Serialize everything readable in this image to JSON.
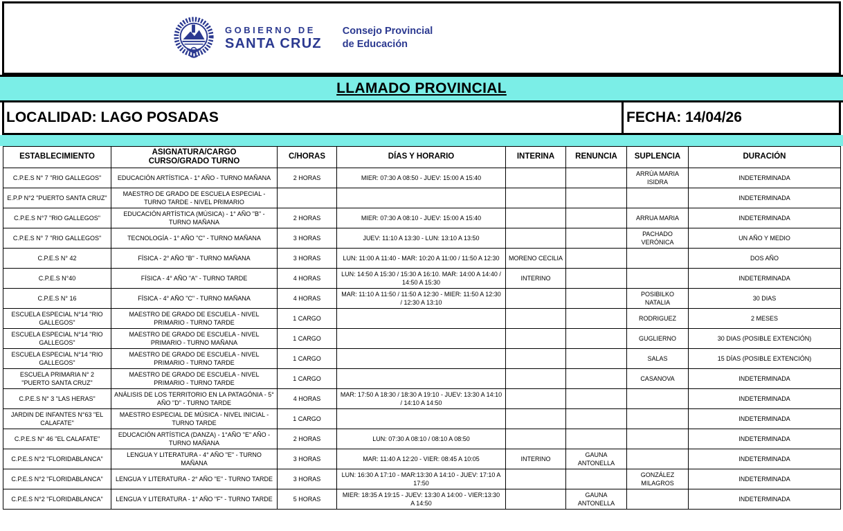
{
  "colors": {
    "band_cyan": "#7beee7",
    "logo_navy": "#2b3990",
    "border_black": "#000000"
  },
  "header": {
    "seal_icon": "santa-cruz-coat-of-arms",
    "gov_line1": "GOBIERNO DE",
    "gov_line2": "SANTA CRUZ",
    "council_line1": "Consejo Provincial",
    "council_line2": "de Educación"
  },
  "title": "LLAMADO PROVINCIAL",
  "localidad": "LOCALIDAD: LAGO POSADAS",
  "fecha": "FECHA: 14/04/26",
  "table": {
    "columns": [
      "ESTABLECIMIENTO",
      "ASIGNATURA/CARGO\nCURSO/GRADO  TURNO",
      "C/HORAS",
      "DÍAS Y HORARIO",
      "INTERINA",
      "RENUNCIA",
      "SUPLENCIA",
      "DURACIÓN"
    ],
    "column_keys": [
      "establecimiento",
      "asignatura-cargo",
      "c-horas",
      "dias-horario",
      "interina",
      "renuncia",
      "suplencia",
      "duracion"
    ],
    "rows": [
      [
        "C.P.E.S N° 7 \"RIO GALLEGOS\"",
        "EDUCACIÓN ARTÍSTICA - 1° AÑO - TURNO MAÑANA",
        "2 HORAS",
        "MIER: 07:30 A 08:50 -  JUEV: 15:00 A 15:40",
        "",
        "",
        "ARRÚA MARIA ISIDRA",
        "INDETERMINADA"
      ],
      [
        "E.P.P N°2 \"PUERTO SANTA CRUZ\"",
        "MAESTRO DE GRADO DE ESCUELA ESPECIAL - TURNO TARDE - NIVEL PRIMARIO",
        "",
        "",
        "",
        "",
        "",
        "INDETERMINADA"
      ],
      [
        "C.P.E.S N°7 \"RIO GALLEGOS\"",
        "EDUCACIÓN ARTÍSTICA (MÚSICA) - 1° AÑO \"B\" - TURNO MAÑANA",
        "2 HORAS",
        "MIER: 07:30 A 08:10 - JUEV: 15:00 A 15:40",
        "",
        "",
        "ARRUA MARIA",
        "INDETERMINADA"
      ],
      [
        "C.P.E.S N° 7 \"RIO GALLEGOS\"",
        "TECNOLOGÍA - 1° AÑO \"C\" - TURNO MAÑANA",
        "3 HORAS",
        "JUEV: 11:10 A 13:30 - LUN: 13:10 A 13:50",
        "",
        "",
        "PACHADO VERÓNICA",
        "UN AÑO Y MEDIO"
      ],
      [
        "C.P.E.S N° 42",
        "FÍSICA - 2° AÑO \"B\" - TURNO MAÑANA",
        "3 HORAS",
        "LUN: 11:00 A 11:40 - MAR: 10:20 A 11:00 / 11:50 A 12:30",
        "MORENO CECILIA",
        "",
        "",
        "DOS  AÑO"
      ],
      [
        "C.P.E.S N°40",
        "FÍSICA - 4° AÑO \"A\" - TURNO TARDE",
        "4 HORAS",
        "LUN: 14:50 A 15:30 / 15:30 A 16:10. MAR: 14:00 A 14:40 / 14:50 A 15:30",
        "INTERINO",
        "",
        "",
        "INDETERMINADA"
      ],
      [
        "C.P.E.S N° 16",
        "FÍSICA - 4° AÑO \"C\" - TURNO MAÑANA",
        "4 HORAS",
        "MAR: 11:10 A 11:50 / 11:50 A 12:30 - MIER: 11:50 A 12:30 / 12:30 A 13:10",
        "",
        "",
        "POSIBILKO NATALIA",
        "30 DIAS"
      ],
      [
        "ESCUELA ESPECIAL N°14 \"RIO GALLEGOS\"",
        "MAESTRO DE GRADO DE ESCUELA  - NIVEL PRIMARIO - TURNO TARDE",
        "1 CARGO",
        "",
        "",
        "",
        "RODRIGUEZ",
        "2 MESES"
      ],
      [
        "ESCUELA ESPECIAL N°14 \"RIO GALLEGOS\"",
        "MAESTRO DE GRADO DE ESCUELA  - NIVEL PRIMARIO - TURNO MAÑANA",
        "1 CARGO",
        "",
        "",
        "",
        "GUGLIERNO",
        "30 DIAS (POSIBLE EXTENCIÓN)"
      ],
      [
        "ESCUELA ESPECIAL N°14 \"RIO GALLEGOS\"",
        "MAESTRO DE GRADO DE ESCUELA  - NIVEL PRIMARIO - TURNO TARDE",
        "1 CARGO",
        "",
        "",
        "",
        "SALAS",
        "15 DÍAS (POSIBLE EXTENCIÓN)"
      ],
      [
        "ESCUELA PRIMARIA N° 2 \"PUERTO SANTA CRUZ\"",
        "MAESTRO DE GRADO DE ESCUELA  - NIVEL PRIMARIO - TURNO TARDE",
        "1 CARGO",
        "",
        "",
        "",
        "CASANOVA",
        "INDETERMINADA"
      ],
      [
        "C.P.E.S N° 3 \"LAS HERAS\"",
        "ANÁLISIS DE LOS TERRITORIO EN LA PATAGÓNIA - 5° AÑO \"D\" - TURNO TARDE",
        "4 HORAS",
        "MAR: 17:50 A 18:30 / 18:30 A 19:10 - JUEV: 13:30 A 14:10 / 14:10 A 14:50",
        "",
        "",
        "",
        "INDETERMINADA"
      ],
      [
        "JARDIN DE INFANTES N°63 \"EL CALAFATE\"",
        "MAESTRO ESPECIAL DE MÚSICA - NIVEL INICIAL - TURNO TARDE",
        "1 CARGO",
        "",
        "",
        "",
        "",
        "INDETERMINADA"
      ],
      [
        "C.P.E.S N° 46 \"EL CALAFATE\"",
        "EDUCACIÓN ARTÍSTICA (DANZA) - 1°AÑO  \"E\" AÑO - TURNO MAÑANA",
        "2 HORAS",
        "LUN: 07:30 A 08:10 / 08:10 A 08:50",
        "",
        "",
        "",
        "INDETERMINADA"
      ],
      [
        "C.P.E.S N°2 \"FLORIDABLANCA\"",
        "LENGUA Y LITERATURA - 4°  AÑO \"E\" - TURNO MAÑANA",
        "3 HORAS",
        "MAR: 11:40 A 12:20 - VIER: 08:45 A 10:05",
        "INTERINO",
        "GAUNA ANTONELLA",
        "",
        "INDETERMINADA"
      ],
      [
        "C.P.E.S N°2 \"FLORIDABLANCA\"",
        "LENGUA Y LITERATURA - 2°  AÑO \"E\" - TURNO TARDE",
        "3 HORAS",
        "LUN: 16:30 A 17:10 - MAR:13:30 A 14:10 - JUEV: 17:10 A 17:50",
        "",
        "",
        "GONZÁLEZ MILAGROS",
        "INDETERMINADA"
      ],
      [
        "C.P.E.S N°2 \"FLORIDABLANCA\"",
        "LENGUA Y LITERATURA - 1° AÑO \"F\" - TURNO TARDE",
        "5 HORAS",
        "MIER: 18:35 A 19:15 - JUEV: 13:30 A 14:00 - VIER:13:30 A 14:50",
        "",
        "GAUNA ANTONELLA",
        "",
        "INDETERMINADA"
      ]
    ]
  }
}
